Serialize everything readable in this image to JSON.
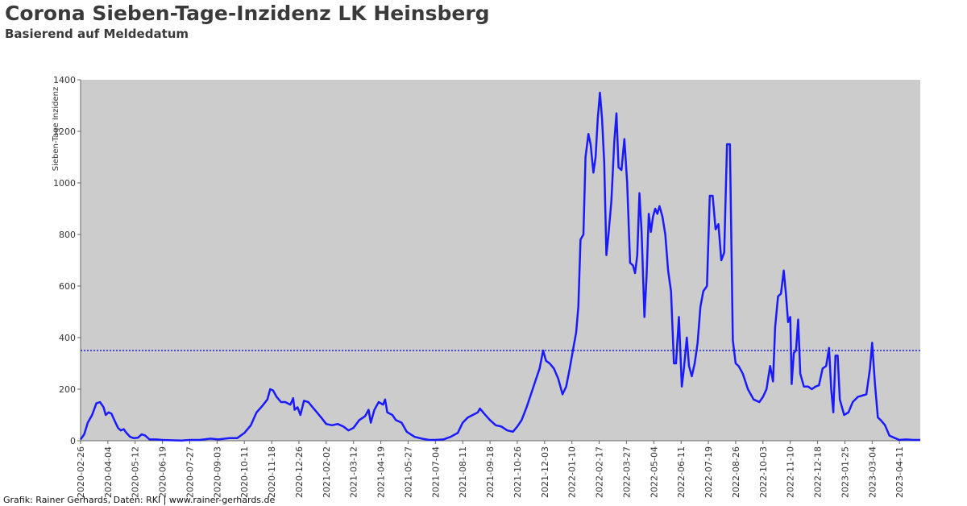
{
  "header": {
    "title": "Corona Sieben-Tage-Inzidenz LK Heinsberg",
    "subtitle": "Basierend auf Meldedatum"
  },
  "footer": {
    "credit": "Grafik: Rainer Gerhards, Daten: RKI | www.rainer-gerhards.de"
  },
  "colors": {
    "plot_background": "#cccccc",
    "series_line": "#1a1aff",
    "reference_line": "#0000cc"
  },
  "chart_data": {
    "type": "line",
    "ylabel": "Sieben-Tage Inzidenz",
    "xlabel": "",
    "ylim": [
      0,
      1400
    ],
    "xlim": [
      "2020-02-26",
      "2023-05-10"
    ],
    "grid": false,
    "legend": "none",
    "yticks": [
      "0",
      "200",
      "400",
      "600",
      "800",
      "1000",
      "1200",
      "1400"
    ],
    "xticks": [
      "2020-02-26",
      "2020-04-04",
      "2020-05-12",
      "2020-06-19",
      "2020-07-27",
      "2020-09-03",
      "2020-10-11",
      "2020-11-18",
      "2020-12-26",
      "2021-02-02",
      "2021-03-12",
      "2021-04-19",
      "2021-05-27",
      "2021-07-04",
      "2021-08-11",
      "2021-09-18",
      "2021-10-26",
      "2021-12-03",
      "2022-01-10",
      "2022-02-17",
      "2022-03-27",
      "2022-05-04",
      "2022-06-11",
      "2022-07-19",
      "2022-08-26",
      "2022-10-03",
      "2022-11-10",
      "2022-12-18",
      "2023-01-25",
      "2023-03-04",
      "2023-04-11"
    ],
    "reference_line": 350,
    "series": [
      {
        "points": [
          [
            "2020-02-26",
            5
          ],
          [
            "2020-03-02",
            25
          ],
          [
            "2020-03-07",
            70
          ],
          [
            "2020-03-13",
            100
          ],
          [
            "2020-03-19",
            145
          ],
          [
            "2020-03-24",
            150
          ],
          [
            "2020-03-29",
            130
          ],
          [
            "2020-04-01",
            100
          ],
          [
            "2020-04-05",
            110
          ],
          [
            "2020-04-09",
            105
          ],
          [
            "2020-04-13",
            80
          ],
          [
            "2020-04-18",
            50
          ],
          [
            "2020-04-22",
            40
          ],
          [
            "2020-04-26",
            45
          ],
          [
            "2020-04-30",
            30
          ],
          [
            "2020-05-05",
            15
          ],
          [
            "2020-05-10",
            10
          ],
          [
            "2020-05-16",
            12
          ],
          [
            "2020-05-21",
            25
          ],
          [
            "2020-05-26",
            20
          ],
          [
            "2020-06-01",
            5
          ],
          [
            "2020-06-10",
            5
          ],
          [
            "2020-06-19",
            3
          ],
          [
            "2020-07-01",
            2
          ],
          [
            "2020-07-15",
            1
          ],
          [
            "2020-07-27",
            3
          ],
          [
            "2020-08-10",
            3
          ],
          [
            "2020-08-25",
            8
          ],
          [
            "2020-09-05",
            5
          ],
          [
            "2020-09-20",
            10
          ],
          [
            "2020-10-01",
            10
          ],
          [
            "2020-10-11",
            30
          ],
          [
            "2020-10-20",
            60
          ],
          [
            "2020-10-28",
            110
          ],
          [
            "2020-11-05",
            135
          ],
          [
            "2020-11-12",
            160
          ],
          [
            "2020-11-16",
            200
          ],
          [
            "2020-11-20",
            195
          ],
          [
            "2020-11-25",
            170
          ],
          [
            "2020-12-01",
            150
          ],
          [
            "2020-12-07",
            150
          ],
          [
            "2020-12-14",
            140
          ],
          [
            "2020-12-18",
            165
          ],
          [
            "2020-12-20",
            120
          ],
          [
            "2020-12-24",
            130
          ],
          [
            "2020-12-28",
            100
          ],
          [
            "2021-01-02",
            155
          ],
          [
            "2021-01-08",
            150
          ],
          [
            "2021-01-14",
            130
          ],
          [
            "2021-01-20",
            110
          ],
          [
            "2021-01-26",
            90
          ],
          [
            "2021-02-02",
            65
          ],
          [
            "2021-02-10",
            60
          ],
          [
            "2021-02-18",
            65
          ],
          [
            "2021-02-26",
            55
          ],
          [
            "2021-03-05",
            40
          ],
          [
            "2021-03-12",
            50
          ],
          [
            "2021-03-20",
            80
          ],
          [
            "2021-03-28",
            95
          ],
          [
            "2021-04-02",
            120
          ],
          [
            "2021-04-05",
            70
          ],
          [
            "2021-04-10",
            120
          ],
          [
            "2021-04-16",
            150
          ],
          [
            "2021-04-22",
            140
          ],
          [
            "2021-04-25",
            160
          ],
          [
            "2021-04-28",
            110
          ],
          [
            "2021-05-05",
            100
          ],
          [
            "2021-05-10",
            80
          ],
          [
            "2021-05-18",
            70
          ],
          [
            "2021-05-25",
            35
          ],
          [
            "2021-06-05",
            15
          ],
          [
            "2021-06-15",
            8
          ],
          [
            "2021-06-25",
            3
          ],
          [
            "2021-07-04",
            3
          ],
          [
            "2021-07-15",
            5
          ],
          [
            "2021-07-25",
            15
          ],
          [
            "2021-08-04",
            30
          ],
          [
            "2021-08-11",
            70
          ],
          [
            "2021-08-18",
            90
          ],
          [
            "2021-08-25",
            100
          ],
          [
            "2021-09-01",
            110
          ],
          [
            "2021-09-04",
            125
          ],
          [
            "2021-09-10",
            105
          ],
          [
            "2021-09-18",
            80
          ],
          [
            "2021-09-26",
            60
          ],
          [
            "2021-10-04",
            55
          ],
          [
            "2021-10-12",
            40
          ],
          [
            "2021-10-20",
            35
          ],
          [
            "2021-10-26",
            55
          ],
          [
            "2021-11-01",
            80
          ],
          [
            "2021-11-08",
            130
          ],
          [
            "2021-11-14",
            180
          ],
          [
            "2021-11-20",
            230
          ],
          [
            "2021-11-26",
            280
          ],
          [
            "2021-12-01",
            350
          ],
          [
            "2021-12-05",
            310
          ],
          [
            "2021-12-10",
            300
          ],
          [
            "2021-12-16",
            280
          ],
          [
            "2021-12-22",
            240
          ],
          [
            "2021-12-28",
            180
          ],
          [
            "2022-01-02",
            210
          ],
          [
            "2022-01-07",
            280
          ],
          [
            "2022-01-12",
            360
          ],
          [
            "2022-01-16",
            420
          ],
          [
            "2022-01-19",
            520
          ],
          [
            "2022-01-22",
            780
          ],
          [
            "2022-01-26",
            800
          ],
          [
            "2022-01-29",
            1100
          ],
          [
            "2022-02-02",
            1190
          ],
          [
            "2022-02-05",
            1150
          ],
          [
            "2022-02-09",
            1040
          ],
          [
            "2022-02-12",
            1100
          ],
          [
            "2022-02-15",
            1250
          ],
          [
            "2022-02-18",
            1350
          ],
          [
            "2022-02-21",
            1250
          ],
          [
            "2022-02-24",
            1080
          ],
          [
            "2022-02-27",
            720
          ],
          [
            "2022-03-02",
            800
          ],
          [
            "2022-03-06",
            930
          ],
          [
            "2022-03-10",
            1160
          ],
          [
            "2022-03-13",
            1270
          ],
          [
            "2022-03-16",
            1060
          ],
          [
            "2022-03-20",
            1050
          ],
          [
            "2022-03-24",
            1170
          ],
          [
            "2022-03-28",
            1000
          ],
          [
            "2022-04-01",
            690
          ],
          [
            "2022-04-05",
            680
          ],
          [
            "2022-04-08",
            650
          ],
          [
            "2022-04-11",
            720
          ],
          [
            "2022-04-14",
            960
          ],
          [
            "2022-04-17",
            810
          ],
          [
            "2022-04-21",
            480
          ],
          [
            "2022-04-24",
            640
          ],
          [
            "2022-04-27",
            880
          ],
          [
            "2022-04-30",
            810
          ],
          [
            "2022-05-03",
            870
          ],
          [
            "2022-05-06",
            900
          ],
          [
            "2022-05-09",
            880
          ],
          [
            "2022-05-12",
            910
          ],
          [
            "2022-05-16",
            870
          ],
          [
            "2022-05-20",
            800
          ],
          [
            "2022-05-24",
            660
          ],
          [
            "2022-05-28",
            580
          ],
          [
            "2022-06-01",
            300
          ],
          [
            "2022-06-04",
            300
          ],
          [
            "2022-06-08",
            480
          ],
          [
            "2022-06-12",
            210
          ],
          [
            "2022-06-15",
            280
          ],
          [
            "2022-06-19",
            400
          ],
          [
            "2022-06-22",
            290
          ],
          [
            "2022-06-26",
            250
          ],
          [
            "2022-06-30",
            300
          ],
          [
            "2022-07-04",
            380
          ],
          [
            "2022-07-08",
            520
          ],
          [
            "2022-07-12",
            580
          ],
          [
            "2022-07-17",
            600
          ],
          [
            "2022-07-21",
            950
          ],
          [
            "2022-07-25",
            950
          ],
          [
            "2022-07-29",
            820
          ],
          [
            "2022-08-02",
            840
          ],
          [
            "2022-08-06",
            700
          ],
          [
            "2022-08-10",
            730
          ],
          [
            "2022-08-14",
            1150
          ],
          [
            "2022-08-18",
            1150
          ],
          [
            "2022-08-22",
            390
          ],
          [
            "2022-08-26",
            300
          ],
          [
            "2022-08-30",
            290
          ],
          [
            "2022-09-05",
            260
          ],
          [
            "2022-09-12",
            200
          ],
          [
            "2022-09-20",
            160
          ],
          [
            "2022-09-28",
            150
          ],
          [
            "2022-10-03",
            170
          ],
          [
            "2022-10-08",
            200
          ],
          [
            "2022-10-13",
            290
          ],
          [
            "2022-10-17",
            230
          ],
          [
            "2022-10-20",
            440
          ],
          [
            "2022-10-24",
            560
          ],
          [
            "2022-10-28",
            570
          ],
          [
            "2022-11-01",
            660
          ],
          [
            "2022-11-04",
            570
          ],
          [
            "2022-11-07",
            460
          ],
          [
            "2022-11-10",
            480
          ],
          [
            "2022-11-12",
            220
          ],
          [
            "2022-11-15",
            340
          ],
          [
            "2022-11-18",
            350
          ],
          [
            "2022-11-21",
            470
          ],
          [
            "2022-11-24",
            260
          ],
          [
            "2022-11-29",
            210
          ],
          [
            "2022-12-05",
            210
          ],
          [
            "2022-12-10",
            200
          ],
          [
            "2022-12-15",
            210
          ],
          [
            "2022-12-20",
            215
          ],
          [
            "2022-12-25",
            280
          ],
          [
            "2022-12-30",
            290
          ],
          [
            "2023-01-03",
            360
          ],
          [
            "2023-01-06",
            200
          ],
          [
            "2023-01-09",
            110
          ],
          [
            "2023-01-12",
            330
          ],
          [
            "2023-01-15",
            330
          ],
          [
            "2023-01-18",
            160
          ],
          [
            "2023-01-24",
            100
          ],
          [
            "2023-01-30",
            110
          ],
          [
            "2023-02-05",
            150
          ],
          [
            "2023-02-12",
            170
          ],
          [
            "2023-02-18",
            175
          ],
          [
            "2023-02-24",
            180
          ],
          [
            "2023-03-01",
            280
          ],
          [
            "2023-03-04",
            380
          ],
          [
            "2023-03-08",
            220
          ],
          [
            "2023-03-12",
            90
          ],
          [
            "2023-03-16",
            80
          ],
          [
            "2023-03-22",
            60
          ],
          [
            "2023-03-28",
            20
          ],
          [
            "2023-04-05",
            10
          ],
          [
            "2023-04-11",
            3
          ],
          [
            "2023-04-20",
            5
          ],
          [
            "2023-04-30",
            3
          ],
          [
            "2023-05-10",
            3
          ]
        ]
      }
    ]
  }
}
